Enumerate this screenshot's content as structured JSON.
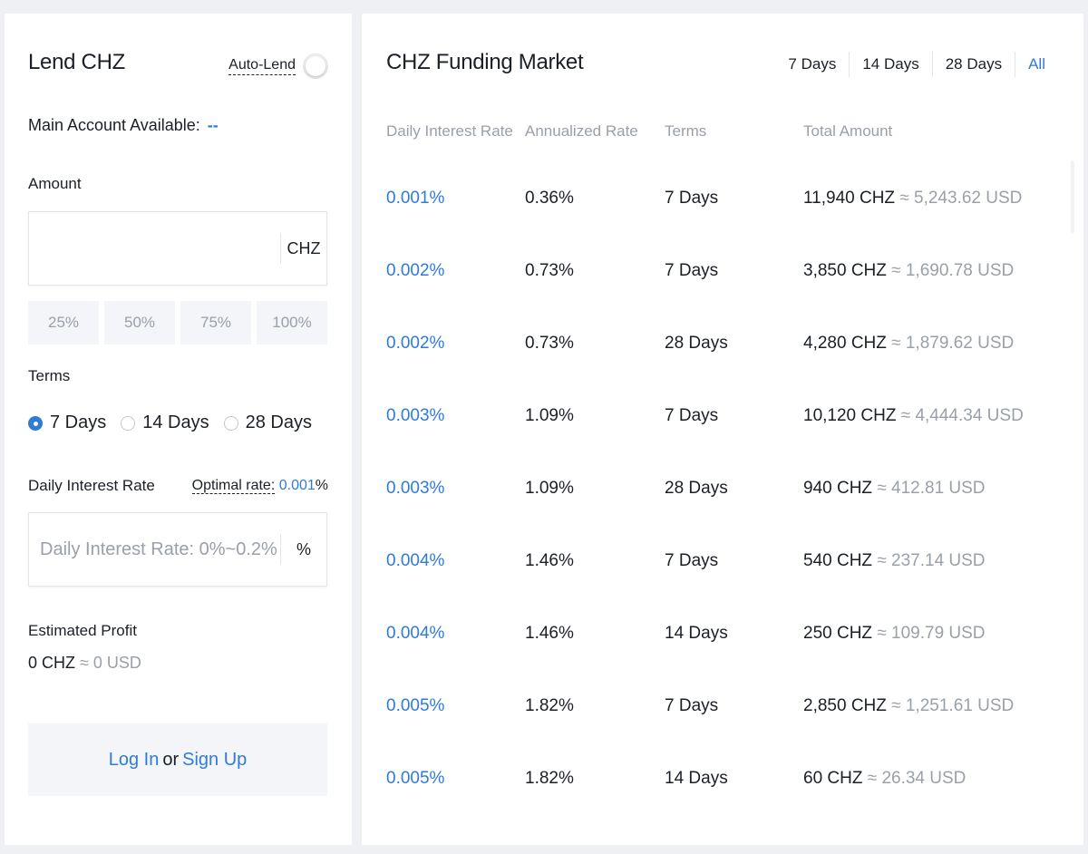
{
  "lend": {
    "title": "Lend CHZ",
    "auto_lend_label": "Auto-Lend",
    "auto_lend_enabled": false,
    "available_label": "Main Account Available:",
    "available_value": "--",
    "amount_label": "Amount",
    "amount_value": "",
    "amount_unit": "CHZ",
    "percent_buttons": [
      "25%",
      "50%",
      "75%",
      "100%"
    ],
    "terms_label": "Terms",
    "terms": [
      {
        "label": "7 Days",
        "checked": true
      },
      {
        "label": "14 Days",
        "checked": false
      },
      {
        "label": "28 Days",
        "checked": false
      }
    ],
    "rate_label": "Daily Interest Rate",
    "optimal_label": "Optimal rate:",
    "optimal_value": "0.001",
    "optimal_suffix": "%",
    "rate_placeholder": "Daily Interest Rate: 0%~0.2%",
    "rate_unit": "%",
    "profit_label": "Estimated Profit",
    "profit_chz": "0 CHZ",
    "profit_usd": "≈ 0 USD",
    "login_label": "Log In",
    "or_label": "or",
    "signup_label": "Sign Up"
  },
  "market": {
    "title": "CHZ Funding Market",
    "periods": [
      {
        "label": "7 Days",
        "active": false
      },
      {
        "label": "14 Days",
        "active": false
      },
      {
        "label": "28 Days",
        "active": false
      },
      {
        "label": "All",
        "active": true
      }
    ],
    "columns": [
      "Daily Interest Rate",
      "Annualized Rate",
      "Terms",
      "Total Amount"
    ],
    "rows": [
      {
        "rate": "0.001%",
        "annual": "0.36%",
        "term": "7 Days",
        "chz": "11,940 CHZ",
        "usd": "≈ 5,243.62 USD"
      },
      {
        "rate": "0.002%",
        "annual": "0.73%",
        "term": "7 Days",
        "chz": "3,850 CHZ",
        "usd": "≈ 1,690.78 USD"
      },
      {
        "rate": "0.002%",
        "annual": "0.73%",
        "term": "28 Days",
        "chz": "4,280 CHZ",
        "usd": "≈ 1,879.62 USD"
      },
      {
        "rate": "0.003%",
        "annual": "1.09%",
        "term": "7 Days",
        "chz": "10,120 CHZ",
        "usd": "≈ 4,444.34 USD"
      },
      {
        "rate": "0.003%",
        "annual": "1.09%",
        "term": "28 Days",
        "chz": "940 CHZ",
        "usd": "≈ 412.81 USD"
      },
      {
        "rate": "0.004%",
        "annual": "1.46%",
        "term": "7 Days",
        "chz": "540 CHZ",
        "usd": "≈ 237.14 USD"
      },
      {
        "rate": "0.004%",
        "annual": "1.46%",
        "term": "14 Days",
        "chz": "250 CHZ",
        "usd": "≈ 109.79 USD"
      },
      {
        "rate": "0.005%",
        "annual": "1.82%",
        "term": "7 Days",
        "chz": "2,850 CHZ",
        "usd": "≈ 1,251.61 USD"
      },
      {
        "rate": "0.005%",
        "annual": "1.82%",
        "term": "14 Days",
        "chz": "60 CHZ",
        "usd": "≈ 26.34 USD"
      }
    ]
  },
  "colors": {
    "accent": "#2f7bd6",
    "muted": "#9aa0a9",
    "background": "#eef0f3"
  }
}
